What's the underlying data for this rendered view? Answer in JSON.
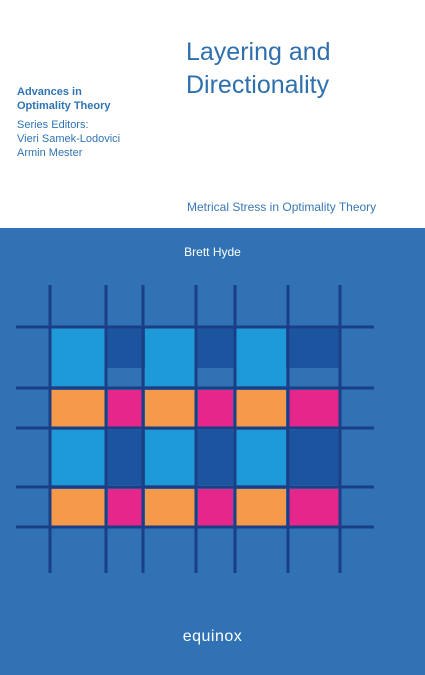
{
  "series": {
    "name_line1": "Advances in",
    "name_line2": "Optimality Theory",
    "editors_label": "Series Editors:",
    "editor1": "Vieri Samek-Lodovici",
    "editor2": "Armin Mester"
  },
  "book": {
    "title_line1": "Layering and",
    "title_line2": "Directionality",
    "subtitle": "Metrical Stress in Optimality Theory",
    "author": "Brett Hyde",
    "publisher": "equinox"
  },
  "colors": {
    "background_blue": "#3072b4",
    "dark_blue": "#1d54a0",
    "light_blue": "#1f9ad8",
    "orange": "#f59a4a",
    "magenta": "#e5268a",
    "line": "#1a3f86"
  }
}
